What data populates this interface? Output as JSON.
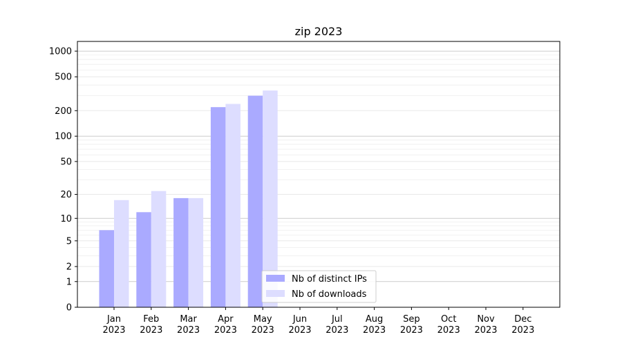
{
  "chart_data": {
    "type": "bar",
    "title": "zip 2023",
    "xlabel": "",
    "ylabel": "",
    "yscale": "log1p",
    "ylim": [
      0,
      1300
    ],
    "y_ticks": [
      0,
      1,
      2,
      5,
      10,
      20,
      50,
      100,
      200,
      500,
      1000
    ],
    "categories": [
      {
        "month": "Jan",
        "year": "2023"
      },
      {
        "month": "Feb",
        "year": "2023"
      },
      {
        "month": "Mar",
        "year": "2023"
      },
      {
        "month": "Apr",
        "year": "2023"
      },
      {
        "month": "May",
        "year": "2023"
      },
      {
        "month": "Jun",
        "year": "2023"
      },
      {
        "month": "Jul",
        "year": "2023"
      },
      {
        "month": "Aug",
        "year": "2023"
      },
      {
        "month": "Sep",
        "year": "2023"
      },
      {
        "month": "Oct",
        "year": "2023"
      },
      {
        "month": "Nov",
        "year": "2023"
      },
      {
        "month": "Dec",
        "year": "2023"
      }
    ],
    "series": [
      {
        "name": "Nb of distinct IPs",
        "color": "#aaaaff",
        "values": [
          7,
          12,
          18,
          220,
          300,
          0,
          0,
          0,
          0,
          0,
          0,
          0
        ]
      },
      {
        "name": "Nb of downloads",
        "color": "#ddddff",
        "values": [
          17,
          22,
          18,
          240,
          345,
          0,
          0,
          0,
          0,
          0,
          0,
          0
        ]
      }
    ],
    "grid": true,
    "legend_position": "bottom-center"
  }
}
